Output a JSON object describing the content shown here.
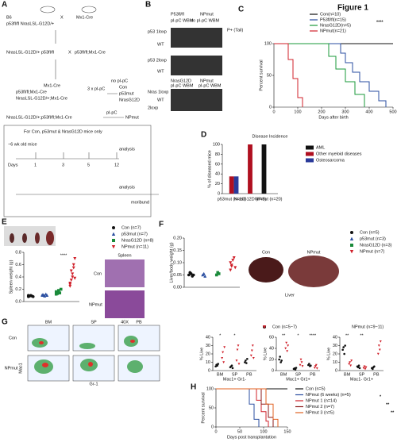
{
  "figure_title": "Figure 1",
  "A": {
    "label": "A",
    "texts": [
      "B6",
      "p53fl/fl NrasLSL-G12D/+",
      "X",
      "Mx1-Cre",
      "NrasLSL-G12D/+ p53fl/fl",
      "X",
      "p53fl/fl;Mx1-Cre",
      "Mx1-Cre",
      "p53fl/fl;Mx1-Cre",
      "NrasLSL-G12D/+;Mx1-Cre",
      "3 x pI-pC",
      "Con",
      "p53mut",
      "NrasG12D",
      "NrasLSL-G12D/+;p53fl/fl;Mx1-Cre",
      "no pI-pC",
      "pI-pC",
      "NPmut",
      "For Con, p53mut & NrasG12D mice only",
      "~6 wk old mice",
      "analysis",
      "analysis",
      "moribund",
      "Days",
      "1",
      "3",
      "5",
      "12"
    ]
  },
  "B": {
    "label": "B",
    "texts": [
      "P53fl/fl",
      "NPmut",
      "pI-pC WBM",
      "no pI-pC WBM",
      "p53 1loxp",
      "WT",
      "p53 2loxp",
      "WT",
      "NrasG12D",
      "NPmut",
      "Nras 1loxp",
      "WT",
      "2loxp",
      "pI-pC WBM",
      "pI-pC WBM",
      "P+ (Tail)"
    ]
  },
  "C": {
    "label": "C",
    "type": "survival",
    "ylabel": "Percent survival",
    "xlabel": "Days after birth",
    "sig": "****",
    "xlim": [
      0,
      500
    ],
    "ylim": [
      0,
      100
    ],
    "xticks": [
      0,
      100,
      200,
      300,
      400,
      500
    ],
    "yticks": [
      0,
      50,
      100
    ],
    "series": [
      {
        "name": "Con(n=10)",
        "color": "#111111",
        "x": [
          0,
          500
        ],
        "values": [
          100,
          100
        ]
      },
      {
        "name": "P53fl/fl(n=15)",
        "color": "#2a4ea0",
        "x": [
          0,
          250,
          280,
          300,
          330,
          360,
          400,
          440,
          470
        ],
        "values": [
          100,
          100,
          85,
          70,
          55,
          40,
          25,
          10,
          0
        ]
      },
      {
        "name": "NrasG12D(n=5)",
        "color": "#1a9a3a",
        "x": [
          0,
          200,
          230,
          260,
          300,
          340,
          380
        ],
        "values": [
          100,
          100,
          80,
          60,
          40,
          20,
          0
        ]
      },
      {
        "name": "NPmut(n=21)",
        "color": "#d0202a",
        "x": [
          0,
          40,
          60,
          80,
          100,
          120
        ],
        "values": [
          100,
          100,
          75,
          45,
          15,
          0
        ]
      }
    ]
  },
  "D": {
    "label": "D",
    "type": "bar",
    "title": "Disease Incidence",
    "ylabel": "% of diseased mice",
    "ylim": [
      0,
      100
    ],
    "yticks": [
      0,
      20,
      40,
      60,
      80,
      100
    ],
    "categories": [
      "p53mut (n=10)",
      "NrasG12D (n=8)",
      "NPmut (n=20)"
    ],
    "series": [
      {
        "name": "AML",
        "color": "#111111",
        "values": [
          0,
          0,
          100
        ]
      },
      {
        "name": "Other myeloid diseases",
        "color": "#b01020",
        "values": [
          35,
          100,
          0
        ]
      },
      {
        "name": "Osteosarcoma",
        "color": "#2a3a9a",
        "values": [
          35,
          0,
          0
        ]
      }
    ]
  },
  "E": {
    "label": "E",
    "type": "dot",
    "ylabel": "Spleen weight (g)",
    "sig": "****",
    "ylim": [
      0,
      0.8
    ],
    "yticks": [
      {
        "value": 0,
        "label": "0.0"
      },
      0.2,
      0.4,
      0.6,
      0.8
    ],
    "series": [
      {
        "name": "Con (n=7)",
        "color": "#111111",
        "marker": "circle",
        "values": [
          0.08,
          0.09,
          0.1,
          0.09,
          0.08,
          0.1,
          0.09
        ]
      },
      {
        "name": "p53mut (n=7)",
        "color": "#2a4ea0",
        "marker": "triangle",
        "values": [
          0.1,
          0.11,
          0.09,
          0.12,
          0.1,
          0.11,
          0.1
        ]
      },
      {
        "name": "NrasG12D (n=8)",
        "color": "#1a8a3a",
        "marker": "square",
        "values": [
          0.12,
          0.15,
          0.18,
          0.14,
          0.2,
          0.16,
          0.13,
          0.15
        ]
      },
      {
        "name": "NPmut (n=11)",
        "color": "#d0202a",
        "marker": "triangle-down",
        "values": [
          0.25,
          0.35,
          0.45,
          0.6,
          0.7,
          0.3,
          0.5,
          0.4,
          0.55,
          0.38,
          0.28
        ]
      }
    ],
    "spleen_title": "Spleen",
    "hist_labels": [
      "Con",
      "NPmut"
    ],
    "magnification": "40X"
  },
  "F": {
    "label": "F",
    "type": "dot",
    "ylabel": "Liver/body weight (g)",
    "ylim": [
      0,
      0.2
    ],
    "yticks": [
      {
        "value": 0,
        "label": "0.00"
      },
      {
        "value": 0.05,
        "label": "0.05"
      },
      {
        "value": 0.1,
        "label": "0.10"
      },
      {
        "value": 0.15,
        "label": "0.15"
      },
      {
        "value": 0.2,
        "label": "0.20"
      }
    ],
    "series": [
      {
        "name": "Con (n=5)",
        "color": "#111111",
        "marker": "circle",
        "values": [
          0.05,
          0.06,
          0.055,
          0.045,
          0.05
        ]
      },
      {
        "name": "p53mut (n=3)",
        "color": "#2a4ea0",
        "marker": "triangle",
        "values": [
          0.05,
          0.055,
          0.045
        ]
      },
      {
        "name": "NrasG12D (n=3)",
        "color": "#1a8a3a",
        "marker": "square",
        "values": [
          0.05,
          0.06,
          0.055
        ]
      },
      {
        "name": "NPmut (n=7)",
        "color": "#d0202a",
        "marker": "triangle-down",
        "values": [
          0.07,
          0.09,
          0.11,
          0.12,
          0.08,
          0.1,
          0.085
        ]
      }
    ],
    "photo_labels": [
      "Con",
      "NPmut",
      "Liver"
    ]
  },
  "G": {
    "label": "G",
    "flow_labels": [
      "BM",
      "SP",
      "PB",
      "Con",
      "NPmut",
      "Mac1",
      "Gr-1"
    ],
    "legend": [
      {
        "name": "Con (n=5~7)",
        "color": "#111111",
        "marker": "circle"
      },
      {
        "name": "NPmut (n=9~11)",
        "color": "#d0202a",
        "marker": "triangle-down"
      }
    ],
    "plots": [
      {
        "ylabel": "% Live",
        "group": "Mac1+ Gr1-",
        "categories": [
          "BM",
          "SP",
          "PB"
        ],
        "ylim": [
          0,
          40
        ],
        "yticks": [
          0,
          10,
          20,
          30,
          40
        ],
        "sig": [
          "*",
          "*"
        ],
        "con": [
          [
            5,
            7,
            6,
            8
          ],
          [
            4,
            5,
            6,
            3
          ],
          [
            10,
            12,
            9,
            14
          ]
        ],
        "np": [
          [
            15,
            22,
            10,
            28
          ],
          [
            12,
            25,
            30,
            8
          ],
          [
            18,
            24,
            30,
            15
          ]
        ]
      },
      {
        "ylabel": "% Live",
        "group": "Mac1+ Gr1+",
        "categories": [
          "BM",
          "SP",
          "PB"
        ],
        "ylim": [
          0,
          60
        ],
        "yticks": [
          0,
          20,
          40,
          60
        ],
        "sig": [
          "**",
          "*",
          "****"
        ],
        "con": [
          [
            20,
            25,
            15,
            18
          ],
          [
            3,
            4,
            2,
            5
          ],
          [
            10,
            12,
            8,
            9
          ]
        ],
        "np": [
          [
            40,
            50,
            35,
            45
          ],
          [
            10,
            20,
            15,
            8
          ],
          [
            5,
            8,
            10,
            4
          ]
        ]
      },
      {
        "ylabel": "% Live",
        "group": "Mac1- Gr1+",
        "categories": [
          "BM",
          "SP",
          "PB"
        ],
        "ylim": [
          0,
          40
        ],
        "yticks": [
          0,
          10,
          20,
          30,
          40
        ],
        "sig": [
          "**",
          "**"
        ],
        "con": [
          [
            25,
            28,
            20,
            30
          ],
          [
            5,
            4,
            6,
            3
          ],
          [
            3,
            2,
            4,
            5
          ]
        ],
        "np": [
          [
            8,
            10,
            6,
            12
          ],
          [
            3,
            5,
            2,
            4
          ],
          [
            20,
            30,
            25,
            35
          ]
        ]
      }
    ]
  },
  "H": {
    "label": "H",
    "type": "survival",
    "ylabel": "Percent survival",
    "xlabel": "Days post transplantation",
    "sig": [
      "*",
      "**",
      "**"
    ],
    "xlim": [
      0,
      150
    ],
    "ylim": [
      0,
      100
    ],
    "xticks": [
      0,
      50,
      100,
      150
    ],
    "yticks": [
      0,
      50,
      100
    ],
    "series": [
      {
        "name": "Con (n=5)",
        "color": "#111111",
        "x": [
          0,
          150
        ],
        "values": [
          100,
          100
        ]
      },
      {
        "name": "NPmut (6 weeks) (n=5)",
        "color": "#2a4ea0",
        "x": [
          0,
          60,
          70,
          80,
          90
        ],
        "values": [
          100,
          100,
          60,
          20,
          0
        ]
      },
      {
        "name": "NPmut 1 (n=14)",
        "color": "#d0202a",
        "x": [
          0,
          75,
          85,
          95,
          105,
          110
        ],
        "values": [
          100,
          100,
          70,
          40,
          15,
          0
        ]
      },
      {
        "name": "NPmut 2 (n=7)",
        "color": "#8b1a1a",
        "x": [
          0,
          80,
          95,
          110,
          120
        ],
        "values": [
          100,
          100,
          60,
          25,
          0
        ]
      },
      {
        "name": "NPmut 3 (n=5)",
        "color": "#e06020",
        "x": [
          0,
          90,
          105,
          120,
          130
        ],
        "values": [
          100,
          100,
          60,
          20,
          0
        ]
      }
    ]
  }
}
